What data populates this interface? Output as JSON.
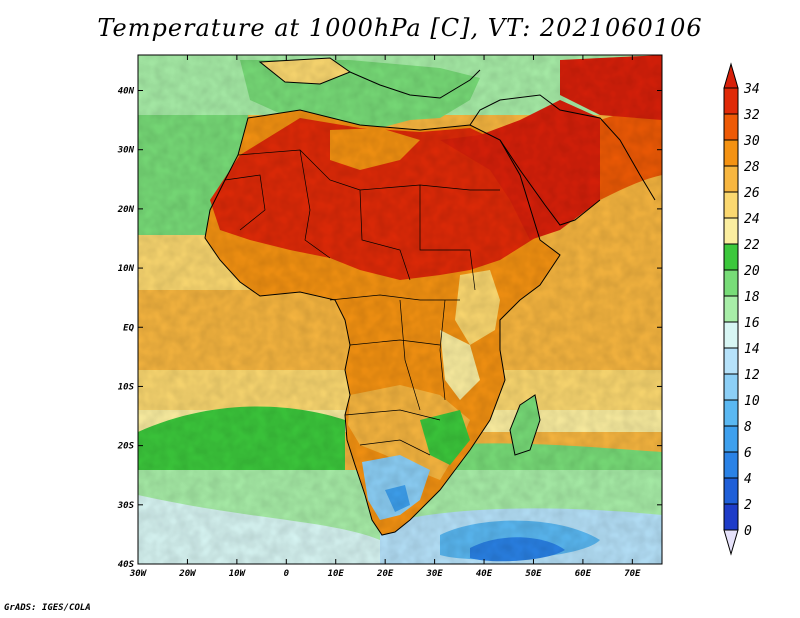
{
  "title": "Temperature at 1000hPa [C], VT: 2021060106",
  "credit": "GrADS: IGES/COLA",
  "map": {
    "lon_range": [
      -30,
      76
    ],
    "lat_range": [
      -40,
      46
    ],
    "lat_ticks": [
      {
        "value": 40,
        "label": "40N"
      },
      {
        "value": 30,
        "label": "30N"
      },
      {
        "value": 20,
        "label": "20N"
      },
      {
        "value": 10,
        "label": "10N"
      },
      {
        "value": 0,
        "label": "EQ"
      },
      {
        "value": -10,
        "label": "10S"
      },
      {
        "value": -20,
        "label": "20S"
      },
      {
        "value": -30,
        "label": "30S"
      },
      {
        "value": -40,
        "label": "40S"
      }
    ],
    "lon_ticks": [
      {
        "value": -30,
        "label": "30W"
      },
      {
        "value": -20,
        "label": "20W"
      },
      {
        "value": -10,
        "label": "10W"
      },
      {
        "value": 0,
        "label": "0"
      },
      {
        "value": 10,
        "label": "10E"
      },
      {
        "value": 20,
        "label": "20E"
      },
      {
        "value": 30,
        "label": "30E"
      },
      {
        "value": 40,
        "label": "40E"
      },
      {
        "value": 50,
        "label": "50E"
      },
      {
        "value": 60,
        "label": "60E"
      },
      {
        "value": 70,
        "label": "70E"
      }
    ]
  },
  "colorbar": {
    "levels": [
      "0",
      "2",
      "4",
      "6",
      "8",
      "10",
      "12",
      "14",
      "16",
      "18",
      "20",
      "22",
      "24",
      "26",
      "28",
      "30",
      "32",
      "34"
    ],
    "colors": [
      "#1a1a8c",
      "#1e3cc8",
      "#1f5fd8",
      "#2a82e6",
      "#3ea0ee",
      "#5ab8f2",
      "#8ccff6",
      "#b6e2fa",
      "#d8f6f4",
      "#a8eea8",
      "#78dc78",
      "#3cc83c",
      "#fbeea0",
      "#fbd870",
      "#f7b640",
      "#f49212",
      "#ee5a06",
      "#e02a08",
      "#d8200a"
    ],
    "below_color": "#e6e2fa",
    "above_color": "#d8200a"
  }
}
